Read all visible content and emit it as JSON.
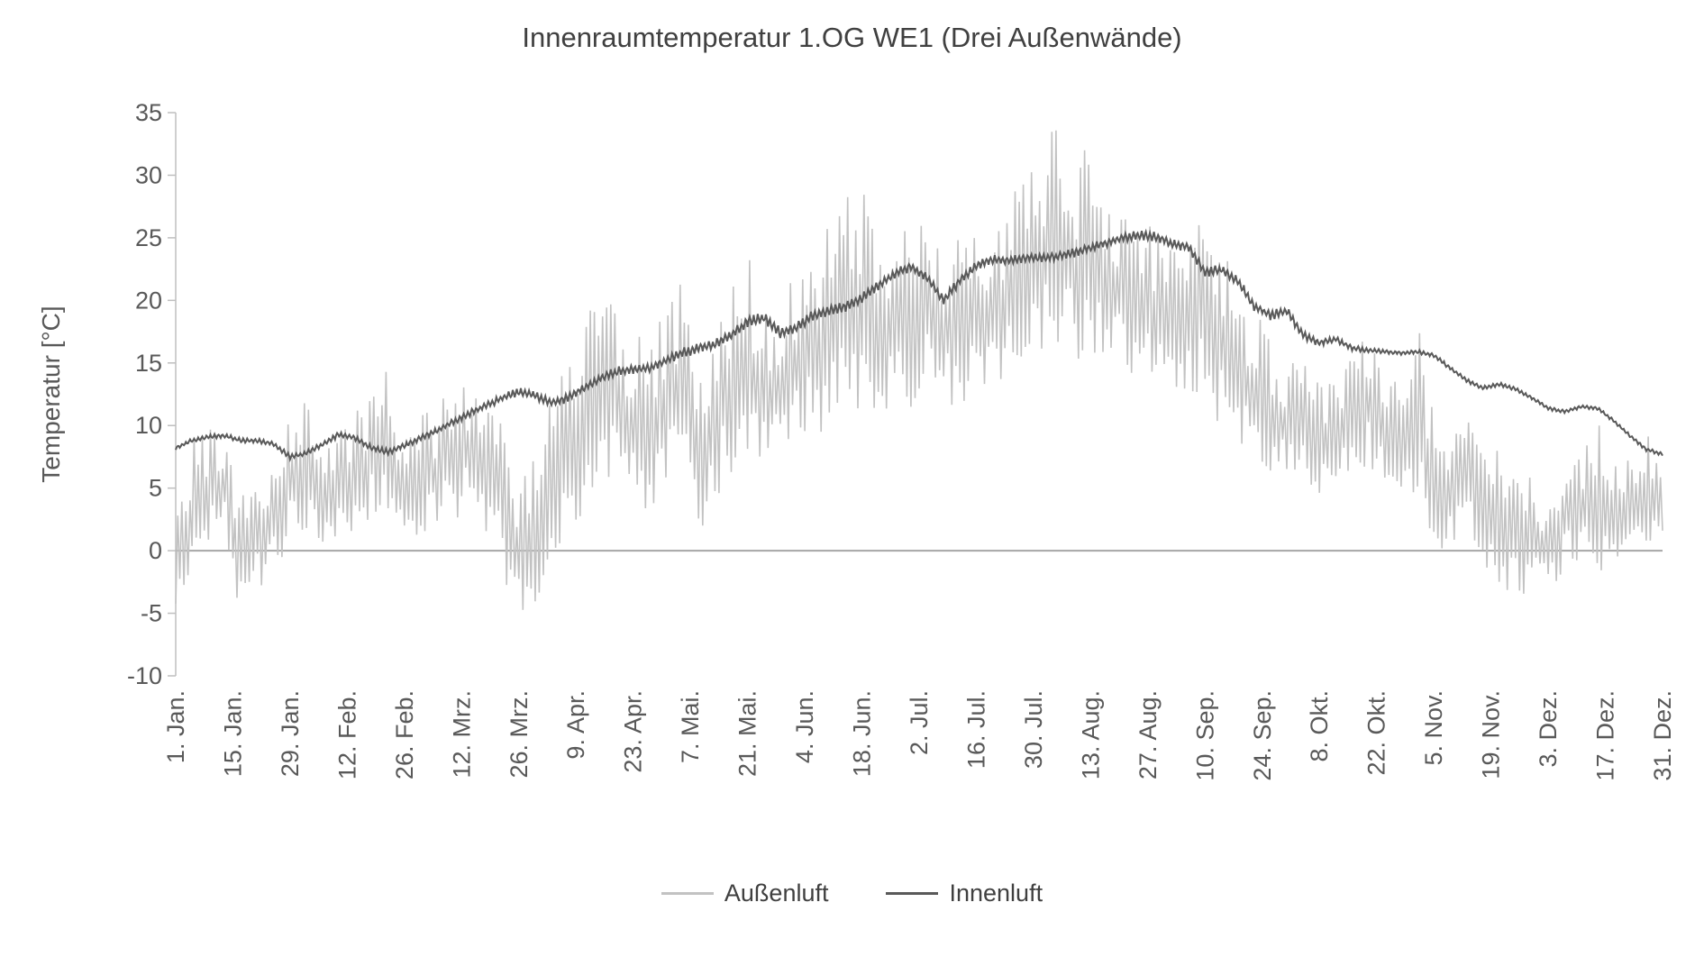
{
  "chart_data": {
    "type": "line",
    "title": "Innenraumtemperatur 1.OG WE1 (Drei Außenwände)",
    "xlabel": "",
    "ylabel": "Temperatur [°C]",
    "ylim": [
      -10,
      35
    ],
    "yticks": [
      -10,
      -5,
      0,
      5,
      10,
      15,
      20,
      25,
      30,
      35
    ],
    "xlim": [
      0,
      364
    ],
    "x_unit": "day_of_year",
    "grid": "none",
    "zero_line": true,
    "legend_position": "bottom",
    "xticks": [
      {
        "day": 0,
        "label": "1. Jan."
      },
      {
        "day": 14,
        "label": "15. Jan."
      },
      {
        "day": 28,
        "label": "29. Jan."
      },
      {
        "day": 42,
        "label": "12. Feb."
      },
      {
        "day": 56,
        "label": "26. Feb."
      },
      {
        "day": 70,
        "label": "12. Mrz."
      },
      {
        "day": 84,
        "label": "26. Mrz."
      },
      {
        "day": 98,
        "label": "9. Apr."
      },
      {
        "day": 112,
        "label": "23. Apr."
      },
      {
        "day": 126,
        "label": "7. Mai."
      },
      {
        "day": 140,
        "label": "21. Mai."
      },
      {
        "day": 154,
        "label": "4. Jun."
      },
      {
        "day": 168,
        "label": "18. Jun."
      },
      {
        "day": 182,
        "label": "2. Jul."
      },
      {
        "day": 196,
        "label": "16. Jul."
      },
      {
        "day": 210,
        "label": "30. Jul."
      },
      {
        "day": 224,
        "label": "13. Aug."
      },
      {
        "day": 238,
        "label": "27. Aug."
      },
      {
        "day": 252,
        "label": "10. Sep."
      },
      {
        "day": 266,
        "label": "24. Sep."
      },
      {
        "day": 280,
        "label": "8. Okt."
      },
      {
        "day": 294,
        "label": "22. Okt."
      },
      {
        "day": 308,
        "label": "5. Nov."
      },
      {
        "day": 322,
        "label": "19. Nov."
      },
      {
        "day": 336,
        "label": "3. Dez."
      },
      {
        "day": 350,
        "label": "17. Dez."
      },
      {
        "day": 364,
        "label": "31. Dez."
      }
    ],
    "series": [
      {
        "name": "Außenluft",
        "color": "#c2c2c2",
        "style": "noisy-diurnal-envelope",
        "envelope_day_min_max": [
          [
            0,
            -6,
            8
          ],
          [
            4,
            -4,
            9
          ],
          [
            8,
            0,
            10
          ],
          [
            12,
            1,
            9
          ],
          [
            16,
            -6,
            5
          ],
          [
            20,
            -4,
            6
          ],
          [
            24,
            -2,
            8
          ],
          [
            28,
            0,
            11
          ],
          [
            32,
            1,
            12
          ],
          [
            36,
            0,
            9
          ],
          [
            40,
            0,
            10
          ],
          [
            44,
            1,
            11
          ],
          [
            48,
            2,
            13
          ],
          [
            52,
            2,
            15
          ],
          [
            56,
            0,
            10
          ],
          [
            60,
            0,
            11
          ],
          [
            64,
            1,
            12
          ],
          [
            68,
            2,
            13
          ],
          [
            72,
            2,
            15
          ],
          [
            76,
            1,
            12
          ],
          [
            80,
            -2,
            10
          ],
          [
            84,
            -8,
            8
          ],
          [
            88,
            -5,
            10
          ],
          [
            92,
            -3,
            12
          ],
          [
            96,
            0,
            16
          ],
          [
            100,
            2,
            19
          ],
          [
            104,
            3,
            23
          ],
          [
            108,
            4,
            20
          ],
          [
            112,
            3,
            18
          ],
          [
            116,
            2,
            16
          ],
          [
            120,
            4,
            20
          ],
          [
            124,
            5,
            22
          ],
          [
            128,
            -1,
            16
          ],
          [
            132,
            3,
            18
          ],
          [
            136,
            5,
            22
          ],
          [
            140,
            6,
            24
          ],
          [
            144,
            5,
            20
          ],
          [
            148,
            6,
            21
          ],
          [
            152,
            8,
            23
          ],
          [
            156,
            8,
            24
          ],
          [
            160,
            9,
            26
          ],
          [
            164,
            10,
            28
          ],
          [
            168,
            10,
            30
          ],
          [
            172,
            10,
            26
          ],
          [
            176,
            11,
            27
          ],
          [
            180,
            10,
            26
          ],
          [
            184,
            12,
            26
          ],
          [
            188,
            11,
            24
          ],
          [
            192,
            10,
            25
          ],
          [
            196,
            12,
            26
          ],
          [
            200,
            12,
            27
          ],
          [
            204,
            13,
            28
          ],
          [
            208,
            14,
            30
          ],
          [
            212,
            15,
            33
          ],
          [
            216,
            15,
            35
          ],
          [
            220,
            14,
            31
          ],
          [
            224,
            15,
            34
          ],
          [
            228,
            14,
            30
          ],
          [
            232,
            13,
            28
          ],
          [
            236,
            13,
            27
          ],
          [
            240,
            12,
            26
          ],
          [
            244,
            11,
            25
          ],
          [
            248,
            10,
            28
          ],
          [
            252,
            9,
            31
          ],
          [
            256,
            8,
            25
          ],
          [
            260,
            7,
            22
          ],
          [
            264,
            6,
            20
          ],
          [
            268,
            5,
            17
          ],
          [
            272,
            5,
            15
          ],
          [
            276,
            5,
            15
          ],
          [
            280,
            4,
            14
          ],
          [
            284,
            4,
            14
          ],
          [
            288,
            5,
            16
          ],
          [
            292,
            5,
            19
          ],
          [
            296,
            4,
            16
          ],
          [
            300,
            3,
            14
          ],
          [
            304,
            2,
            19
          ],
          [
            308,
            0,
            12
          ],
          [
            312,
            -1,
            10
          ],
          [
            316,
            0,
            12
          ],
          [
            320,
            -2,
            10
          ],
          [
            324,
            -4,
            8
          ],
          [
            328,
            -5,
            7
          ],
          [
            332,
            -4,
            6
          ],
          [
            336,
            -4,
            5
          ],
          [
            340,
            -2,
            7
          ],
          [
            344,
            -1,
            8
          ],
          [
            348,
            -3,
            10
          ],
          [
            352,
            -5,
            12
          ],
          [
            356,
            -2,
            9
          ],
          [
            360,
            0,
            10
          ],
          [
            364,
            0,
            6
          ]
        ]
      },
      {
        "name": "Innenluft",
        "color": "#595959",
        "style": "smooth-with-daily-ripple",
        "points_day_value": [
          [
            0,
            8.2
          ],
          [
            4,
            8.8
          ],
          [
            8,
            9.1
          ],
          [
            12,
            9.2
          ],
          [
            16,
            8.8
          ],
          [
            20,
            8.8
          ],
          [
            24,
            8.5
          ],
          [
            28,
            7.5
          ],
          [
            32,
            7.8
          ],
          [
            36,
            8.5
          ],
          [
            40,
            9.3
          ],
          [
            44,
            9.0
          ],
          [
            48,
            8.2
          ],
          [
            52,
            7.9
          ],
          [
            56,
            8.4
          ],
          [
            60,
            9.0
          ],
          [
            64,
            9.6
          ],
          [
            68,
            10.3
          ],
          [
            72,
            11.0
          ],
          [
            76,
            11.6
          ],
          [
            80,
            12.2
          ],
          [
            84,
            12.7
          ],
          [
            88,
            12.4
          ],
          [
            92,
            11.8
          ],
          [
            96,
            12.2
          ],
          [
            100,
            13.0
          ],
          [
            104,
            13.8
          ],
          [
            108,
            14.3
          ],
          [
            112,
            14.5
          ],
          [
            116,
            14.6
          ],
          [
            120,
            15.2
          ],
          [
            124,
            15.8
          ],
          [
            128,
            16.2
          ],
          [
            132,
            16.5
          ],
          [
            136,
            17.2
          ],
          [
            140,
            18.3
          ],
          [
            144,
            18.6
          ],
          [
            148,
            17.4
          ],
          [
            152,
            17.8
          ],
          [
            156,
            18.8
          ],
          [
            160,
            19.2
          ],
          [
            164,
            19.5
          ],
          [
            168,
            20.2
          ],
          [
            172,
            21.2
          ],
          [
            176,
            22.1
          ],
          [
            180,
            22.7
          ],
          [
            184,
            21.8
          ],
          [
            188,
            20.0
          ],
          [
            192,
            21.6
          ],
          [
            196,
            22.8
          ],
          [
            200,
            23.3
          ],
          [
            204,
            23.2
          ],
          [
            208,
            23.4
          ],
          [
            212,
            23.4
          ],
          [
            216,
            23.5
          ],
          [
            220,
            23.8
          ],
          [
            224,
            24.2
          ],
          [
            228,
            24.6
          ],
          [
            232,
            25.0
          ],
          [
            236,
            25.2
          ],
          [
            240,
            25.1
          ],
          [
            244,
            24.5
          ],
          [
            248,
            24.3
          ],
          [
            252,
            22.2
          ],
          [
            256,
            22.5
          ],
          [
            260,
            21.6
          ],
          [
            264,
            19.5
          ],
          [
            268,
            18.8
          ],
          [
            272,
            19.2
          ],
          [
            276,
            17.2
          ],
          [
            280,
            16.6
          ],
          [
            284,
            16.9
          ],
          [
            288,
            16.2
          ],
          [
            292,
            16.0
          ],
          [
            296,
            15.9
          ],
          [
            300,
            15.8
          ],
          [
            304,
            15.9
          ],
          [
            308,
            15.6
          ],
          [
            312,
            14.6
          ],
          [
            316,
            13.6
          ],
          [
            320,
            13.0
          ],
          [
            324,
            13.3
          ],
          [
            328,
            12.9
          ],
          [
            332,
            12.2
          ],
          [
            336,
            11.4
          ],
          [
            340,
            11.1
          ],
          [
            344,
            11.5
          ],
          [
            348,
            11.4
          ],
          [
            352,
            10.4
          ],
          [
            356,
            9.2
          ],
          [
            360,
            8.1
          ],
          [
            364,
            7.7
          ]
        ],
        "ripple_amplitude_by_day": [
          [
            0,
            0.12
          ],
          [
            60,
            0.18
          ],
          [
            100,
            0.28
          ],
          [
            150,
            0.32
          ],
          [
            210,
            0.25
          ],
          [
            250,
            0.3
          ],
          [
            270,
            0.28
          ],
          [
            295,
            0.12
          ],
          [
            364,
            0.1
          ]
        ]
      }
    ],
    "render": {
      "seed": 42,
      "outdoor_step_days": 0.5,
      "indoor_step_days": 0.25
    }
  },
  "colors": {
    "background": "#ffffff",
    "title": "#404040",
    "axis_text": "#595959",
    "axis_line": "#bfbfbf",
    "zero_line": "#a6a6a6"
  }
}
